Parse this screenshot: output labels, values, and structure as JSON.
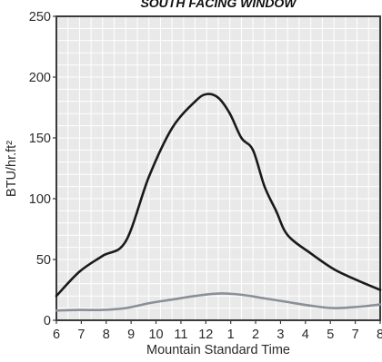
{
  "chart_data": {
    "type": "line",
    "title": "SOUTH FACING WINDOW",
    "xlabel": "Mountain Standard Time",
    "ylabel": "BTU/hr.ft²",
    "ylim": [
      0,
      250
    ],
    "y_ticks": [
      "0",
      "50",
      "100",
      "150",
      "200",
      "250"
    ],
    "x_tick_labels": [
      "6",
      "7",
      "8",
      "9",
      "10",
      "11",
      "12",
      "1",
      "2",
      "3",
      "4",
      "5",
      "7",
      "8"
    ],
    "grid": true,
    "legend": "none",
    "colors": {
      "plot_bg": "#e9e9e9",
      "grid": "#ffffff",
      "frame": "#3a3a3a",
      "upper_line": "#1a1a1a",
      "lower_line": "#8a8f98"
    },
    "series": [
      {
        "x": [
          6,
          7,
          8,
          9,
          10,
          11,
          12,
          12.5,
          13,
          13.5,
          14,
          14.5,
          15,
          15.5,
          16,
          17,
          18,
          19,
          20
        ],
        "values": [
          20,
          40,
          53,
          65,
          118,
          158,
          180,
          186,
          183,
          170,
          150,
          140,
          110,
          90,
          70,
          55,
          42,
          33,
          25
        ]
      },
      {
        "x": [
          6,
          7,
          8,
          9,
          10,
          11,
          12,
          13,
          14,
          15,
          16,
          17,
          18,
          19,
          20
        ],
        "values": [
          8,
          8.5,
          8.5,
          10,
          14,
          17,
          20,
          22,
          21,
          18,
          15,
          12,
          10,
          11,
          13
        ]
      }
    ]
  }
}
